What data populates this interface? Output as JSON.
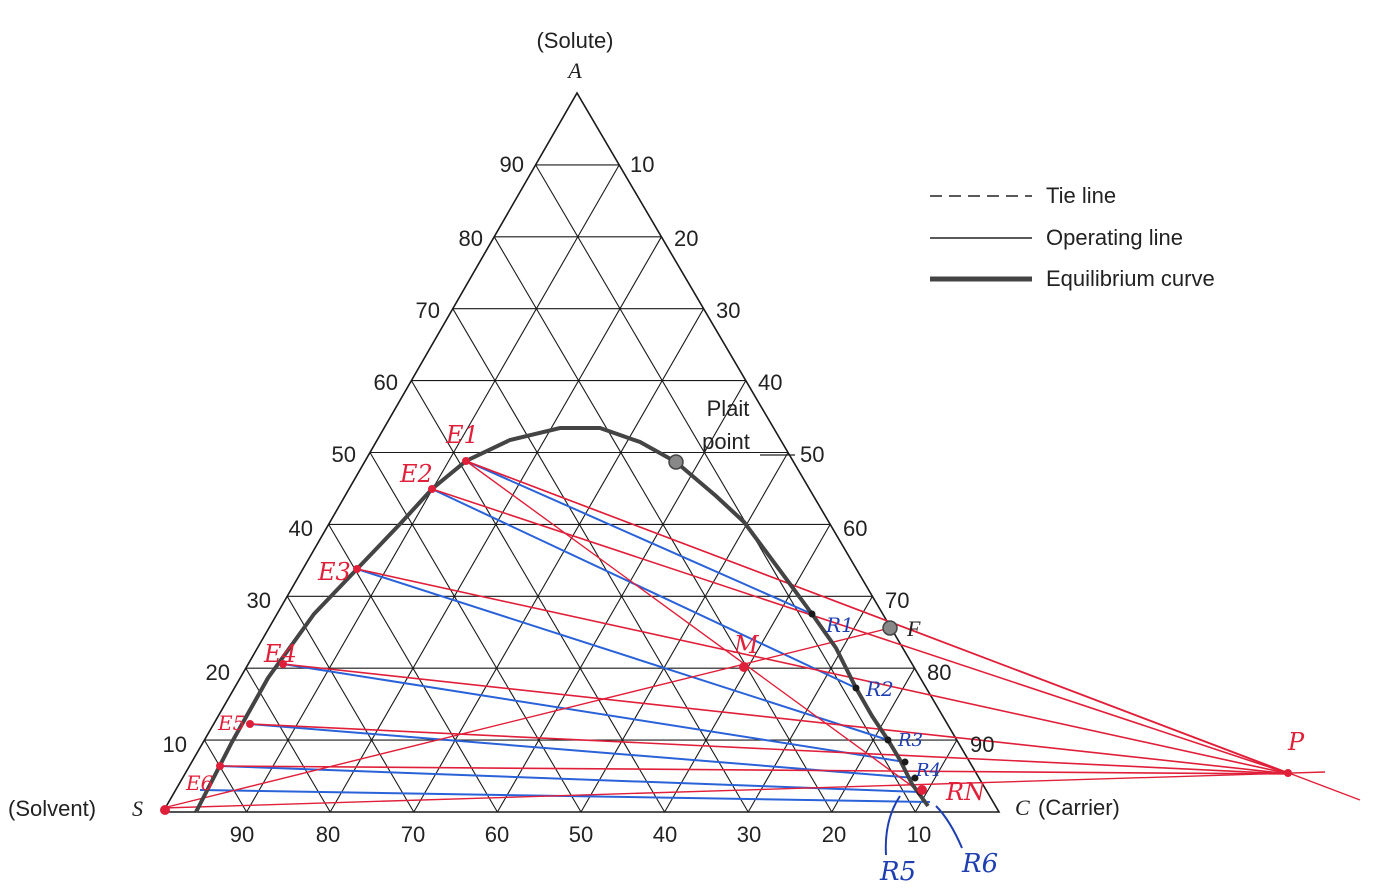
{
  "title_solute": "(Solute)",
  "vertex_a": "A",
  "vertex_s_label": "(Solvent)",
  "vertex_s": "S",
  "vertex_c": "C",
  "vertex_c_label": "(Carrier)",
  "left_ticks": [
    "90",
    "80",
    "70",
    "60",
    "50",
    "40",
    "30",
    "20",
    "10"
  ],
  "right_ticks": [
    "10",
    "20",
    "30",
    "40",
    "50",
    "60",
    "70",
    "80",
    "90"
  ],
  "bottom_ticks": [
    "90",
    "80",
    "70",
    "60",
    "50",
    "40",
    "30",
    "20",
    "10"
  ],
  "legend": {
    "tie_line": "Tie line",
    "operating_line": "Operating line",
    "equilibrium_curve": "Equilibrium curve"
  },
  "plait_point": [
    "Plait",
    "point"
  ],
  "point_f": "F",
  "point_p": "P",
  "point_m": "M",
  "extract_labels": [
    "E1",
    "E2",
    "E3",
    "E4",
    "E5",
    "E6"
  ],
  "raffinate_labels": [
    "R1",
    "R2",
    "R3",
    "R4",
    "R5",
    "R6",
    "RN"
  ],
  "colors": {
    "grid": "#1a1a1a",
    "equilibrium": "#444444",
    "operating": "#e0203a",
    "tie_blue": "#2a62d8",
    "handwriting_blue": "#1f3fb0",
    "handwriting_red": "#e0203a"
  }
}
